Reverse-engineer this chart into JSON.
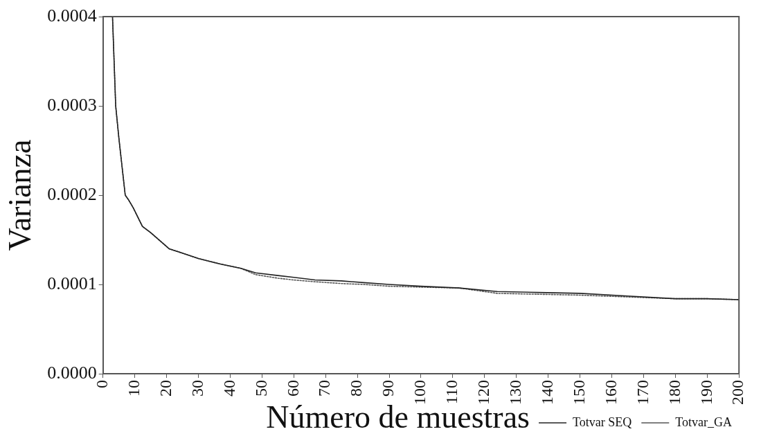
{
  "chart_data": {
    "type": "line",
    "xlabel": "Número de muestras",
    "ylabel": "Varianza",
    "x": [
      3,
      4,
      5,
      6,
      7,
      8,
      9.5,
      12.4,
      15,
      20.8,
      25,
      30,
      36.7,
      43.4,
      48,
      55,
      60,
      66.7,
      75,
      82,
      90,
      100,
      112,
      124,
      137,
      150,
      165,
      180,
      190,
      200
    ],
    "series": [
      {
        "name": "Totvar SEQ",
        "color": "#222222",
        "line_style": "solid",
        "values": [
          0.0004,
          0.0003,
          0.000264,
          0.000232,
          0.0002,
          0.000195,
          0.000186,
          0.000165,
          0.000158,
          0.00014,
          0.000135,
          0.000129,
          0.000123,
          0.000118,
          0.000113,
          0.00011,
          0.000108,
          0.000105,
          0.000104,
          0.000102,
          0.0001,
          9.8e-05,
          9.6e-05,
          9.2e-05,
          9.1e-05,
          9e-05,
          8.7e-05,
          8.4e-05,
          8.4e-05,
          8.3e-05
        ]
      },
      {
        "name": "Totvar_GA",
        "color": "#555555",
        "line_style": "dotted",
        "values": [
          0.0004,
          0.0003,
          0.000264,
          0.000232,
          0.0002,
          0.000195,
          0.000186,
          0.000165,
          0.000158,
          0.00014,
          0.000135,
          0.000129,
          0.000123,
          0.000118,
          0.000111,
          0.000107,
          0.000105,
          0.000103,
          0.000101,
          0.0001,
          9.8e-05,
          9.7e-05,
          9.6e-05,
          9e-05,
          8.9e-05,
          8.8e-05,
          8.6e-05,
          8.4e-05,
          8.4e-05,
          8.3e-05
        ]
      }
    ],
    "xlim": [
      0,
      200
    ],
    "xticks": [
      0,
      10,
      20,
      30,
      40,
      50,
      60,
      70,
      80,
      90,
      100,
      110,
      120,
      130,
      140,
      150,
      160,
      170,
      180,
      190,
      200
    ],
    "ylim": [
      0,
      0.0004
    ],
    "yticks": [
      {
        "value": 0,
        "label": "0.0000"
      },
      {
        "value": 0.0001,
        "label": "0.0001"
      },
      {
        "value": 0.0002,
        "label": "0.0002"
      },
      {
        "value": 0.0003,
        "label": "0.0003"
      },
      {
        "value": 0.0004,
        "label": "0.0004"
      }
    ],
    "grid": false,
    "legend": "bottom right",
    "marker": "none"
  }
}
